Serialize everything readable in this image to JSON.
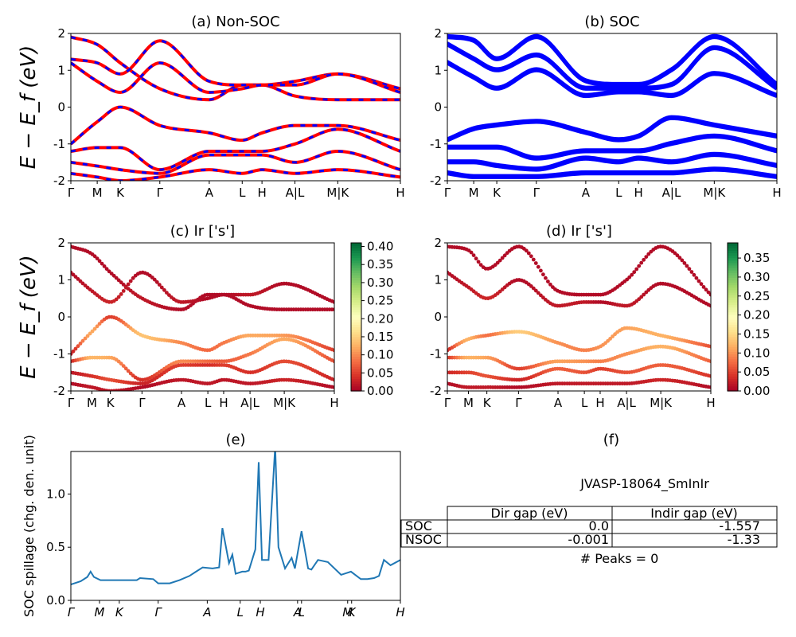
{
  "chart_data": [
    {
      "panel": "a",
      "type": "line",
      "title": "(a) Non-SOC",
      "ylabel": "E − E_f (eV)",
      "ylim": [
        -2,
        2
      ],
      "yticks": [
        -2,
        -1,
        0,
        1,
        2
      ],
      "kpath": [
        "Γ",
        "M",
        "K",
        "Γ",
        "A",
        "L",
        "H",
        "A|L",
        "M|K",
        "H"
      ],
      "series": [
        {
          "color": "#ff0000",
          "x": [
            0,
            0.08,
            0.15,
            0.27,
            0.42,
            0.52,
            0.58,
            0.68,
            0.81,
            1
          ],
          "values": [
            1.9,
            1.7,
            1.2,
            0.5,
            0.2,
            0.6,
            0.6,
            0.3,
            0.2,
            0.2
          ]
        },
        {
          "color": "#ff0000",
          "x": [
            0,
            0.08,
            0.15,
            0.27,
            0.42,
            0.52,
            0.58,
            0.68,
            0.81,
            1
          ],
          "values": [
            1.3,
            1.2,
            0.9,
            1.8,
            0.7,
            0.6,
            0.6,
            0.7,
            0.9,
            0.5
          ]
        },
        {
          "color": "#ff0000",
          "x": [
            0,
            0.08,
            0.15,
            0.27,
            0.42,
            0.52,
            0.58,
            0.68,
            0.81,
            1
          ],
          "values": [
            1.2,
            0.7,
            0.4,
            1.2,
            0.4,
            0.5,
            0.6,
            0.6,
            0.9,
            0.4
          ]
        },
        {
          "color": "#ff0000",
          "x": [
            0,
            0.08,
            0.15,
            0.27,
            0.42,
            0.52,
            0.58,
            0.68,
            0.81,
            1
          ],
          "values": [
            -1.0,
            -0.4,
            0,
            -0.5,
            -0.7,
            -0.9,
            -0.7,
            -0.5,
            -0.5,
            -0.9
          ]
        },
        {
          "color": "#ff0000",
          "x": [
            0,
            0.08,
            0.15,
            0.27,
            0.42,
            0.52,
            0.58,
            0.68,
            0.81,
            1
          ],
          "values": [
            -1.2,
            -1.1,
            -1.1,
            -1.7,
            -1.2,
            -1.2,
            -1.2,
            -1.0,
            -0.6,
            -1.2
          ]
        },
        {
          "color": "#ff0000",
          "x": [
            0,
            0.08,
            0.15,
            0.27,
            0.42,
            0.52,
            0.58,
            0.68,
            0.81,
            1
          ],
          "values": [
            -1.5,
            -1.6,
            -1.7,
            -1.8,
            -1.3,
            -1.3,
            -1.3,
            -1.5,
            -1.2,
            -1.7
          ]
        },
        {
          "color": "#ff0000",
          "x": [
            0,
            0.08,
            0.15,
            0.27,
            0.42,
            0.52,
            0.58,
            0.68,
            0.81,
            1
          ],
          "values": [
            -1.8,
            -1.9,
            -2.0,
            -1.9,
            -1.7,
            -1.8,
            -1.7,
            -1.8,
            -1.7,
            -1.9
          ]
        }
      ]
    },
    {
      "panel": "b",
      "type": "line",
      "title": "(b) SOC",
      "ylim": [
        -2,
        2
      ],
      "yticks": [
        -2,
        -1,
        0,
        1,
        2
      ],
      "kpath": [
        "Γ",
        "M",
        "K",
        "Γ",
        "A",
        "L",
        "H",
        "A|L",
        "M|K",
        "H"
      ],
      "series": [
        {
          "color": "#0000ff",
          "x": [
            0,
            0.08,
            0.15,
            0.27,
            0.42,
            0.52,
            0.58,
            0.68,
            0.81,
            1
          ],
          "values": [
            1.9,
            1.8,
            1.3,
            1.9,
            0.7,
            0.6,
            0.6,
            1.0,
            1.9,
            0.6
          ]
        },
        {
          "color": "#0000ff",
          "x": [
            0,
            0.08,
            0.15,
            0.27,
            0.42,
            0.52,
            0.58,
            0.68,
            0.81,
            1
          ],
          "values": [
            1.7,
            1.3,
            1.0,
            1.4,
            0.5,
            0.5,
            0.5,
            0.6,
            1.6,
            0.5
          ]
        },
        {
          "color": "#0000ff",
          "x": [
            0,
            0.08,
            0.15,
            0.27,
            0.42,
            0.52,
            0.58,
            0.68,
            0.81,
            1
          ],
          "values": [
            1.2,
            0.8,
            0.5,
            1.0,
            0.3,
            0.4,
            0.4,
            0.3,
            0.9,
            0.3
          ]
        },
        {
          "color": "#0000ff",
          "x": [
            0,
            0.08,
            0.15,
            0.27,
            0.42,
            0.52,
            0.58,
            0.68,
            0.81,
            1
          ],
          "values": [
            -0.9,
            -0.6,
            -0.5,
            -0.4,
            -0.7,
            -0.9,
            -0.8,
            -0.3,
            -0.5,
            -0.8
          ]
        },
        {
          "color": "#0000ff",
          "x": [
            0,
            0.08,
            0.15,
            0.27,
            0.42,
            0.52,
            0.58,
            0.68,
            0.81,
            1
          ],
          "values": [
            -1.1,
            -1.1,
            -1.1,
            -1.4,
            -1.2,
            -1.2,
            -1.2,
            -1.0,
            -0.8,
            -1.2
          ]
        },
        {
          "color": "#0000ff",
          "x": [
            0,
            0.08,
            0.15,
            0.27,
            0.42,
            0.52,
            0.58,
            0.68,
            0.81,
            1
          ],
          "values": [
            -1.5,
            -1.5,
            -1.6,
            -1.7,
            -1.4,
            -1.5,
            -1.4,
            -1.5,
            -1.3,
            -1.6
          ]
        },
        {
          "color": "#0000ff",
          "x": [
            0,
            0.08,
            0.15,
            0.27,
            0.42,
            0.52,
            0.58,
            0.68,
            0.81,
            1
          ],
          "values": [
            -1.8,
            -1.9,
            -1.9,
            -1.9,
            -1.8,
            -1.8,
            -1.8,
            -1.8,
            -1.7,
            -1.9
          ]
        }
      ]
    },
    {
      "panel": "c",
      "type": "scatter",
      "title": "(c)  Ir ['s']",
      "ylabel": "E − E_f (eV)",
      "ylim": [
        -2,
        2
      ],
      "yticks": [
        -2,
        -1,
        0,
        1,
        2
      ],
      "kpath": [
        "Γ",
        "M",
        "K",
        "Γ",
        "A",
        "L",
        "H",
        "A|L",
        "M|K",
        "H"
      ],
      "colorbar": {
        "min": 0.0,
        "max": 0.41,
        "ticks": [
          "0.00",
          "0.05",
          "0.10",
          "0.15",
          "0.20",
          "0.25",
          "0.30",
          "0.35",
          "0.40"
        ]
      },
      "series": [
        {
          "x": [
            0,
            0.08,
            0.15,
            0.27,
            0.42,
            0.52,
            0.58,
            0.68,
            0.81,
            1
          ],
          "values": [
            1.9,
            1.7,
            1.2,
            0.5,
            0.2,
            0.6,
            0.6,
            0.3,
            0.2,
            0.2
          ],
          "weights": [
            0.01,
            0.01,
            0.01,
            0.02,
            0.01,
            0.01,
            0.01,
            0.01,
            0.01,
            0.01
          ]
        },
        {
          "x": [
            0,
            0.08,
            0.15,
            0.27,
            0.42,
            0.52,
            0.58,
            0.68,
            0.81,
            1
          ],
          "values": [
            1.2,
            0.7,
            0.4,
            1.2,
            0.4,
            0.5,
            0.6,
            0.6,
            0.9,
            0.4
          ],
          "weights": [
            0.01,
            0.02,
            0.03,
            0.01,
            0.02,
            0.01,
            0.01,
            0.02,
            0.01,
            0.01
          ]
        },
        {
          "x": [
            0,
            0.08,
            0.15,
            0.27,
            0.42,
            0.52,
            0.58,
            0.68,
            0.81,
            1
          ],
          "values": [
            -1.0,
            -0.4,
            0,
            -0.5,
            -0.7,
            -0.9,
            -0.7,
            -0.5,
            -0.5,
            -0.9
          ],
          "weights": [
            0.02,
            0.12,
            0.05,
            0.14,
            0.1,
            0.08,
            0.09,
            0.12,
            0.11,
            0.05
          ]
        },
        {
          "x": [
            0,
            0.08,
            0.15,
            0.27,
            0.42,
            0.52,
            0.58,
            0.68,
            0.81,
            1
          ],
          "values": [
            -1.2,
            -1.1,
            -1.1,
            -1.7,
            -1.2,
            -1.2,
            -1.2,
            -1.0,
            -0.6,
            -1.2
          ],
          "weights": [
            0.03,
            0.13,
            0.12,
            0.04,
            0.1,
            0.08,
            0.07,
            0.09,
            0.12,
            0.06
          ]
        },
        {
          "x": [
            0,
            0.08,
            0.15,
            0.27,
            0.42,
            0.52,
            0.58,
            0.68,
            0.81,
            1
          ],
          "values": [
            -1.5,
            -1.6,
            -1.7,
            -1.8,
            -1.3,
            -1.3,
            -1.3,
            -1.5,
            -1.2,
            -1.7
          ],
          "weights": [
            0.02,
            0.04,
            0.06,
            0.03,
            0.05,
            0.04,
            0.05,
            0.04,
            0.06,
            0.03
          ]
        },
        {
          "x": [
            0,
            0.08,
            0.15,
            0.27,
            0.42,
            0.52,
            0.58,
            0.68,
            0.81,
            1
          ],
          "values": [
            -1.8,
            -1.9,
            -2.0,
            -1.9,
            -1.7,
            -1.8,
            -1.7,
            -1.8,
            -1.7,
            -1.9
          ],
          "weights": [
            0.01,
            0.02,
            0.02,
            0.01,
            0.02,
            0.02,
            0.02,
            0.02,
            0.03,
            0.01
          ]
        }
      ]
    },
    {
      "panel": "d",
      "type": "scatter",
      "title": "(d) Ir ['s']",
      "ylim": [
        -2,
        2
      ],
      "yticks": [
        -2,
        -1,
        0,
        1,
        2
      ],
      "kpath": [
        "Γ",
        "M",
        "K",
        "Γ",
        "A",
        "L",
        "H",
        "A|L",
        "M|K",
        "H"
      ],
      "colorbar": {
        "min": 0.0,
        "max": 0.39,
        "ticks": [
          "0.00",
          "0.05",
          "0.10",
          "0.15",
          "0.20",
          "0.25",
          "0.30",
          "0.35"
        ]
      },
      "series": [
        {
          "x": [
            0,
            0.08,
            0.15,
            0.27,
            0.42,
            0.52,
            0.58,
            0.68,
            0.81,
            1
          ],
          "values": [
            1.9,
            1.8,
            1.3,
            1.9,
            0.7,
            0.6,
            0.6,
            1.0,
            1.9,
            0.6
          ],
          "weights": [
            0.01,
            0.01,
            0.01,
            0.01,
            0.01,
            0.01,
            0.01,
            0.01,
            0.01,
            0.01
          ]
        },
        {
          "x": [
            0,
            0.08,
            0.15,
            0.27,
            0.42,
            0.52,
            0.58,
            0.68,
            0.81,
            1
          ],
          "values": [
            1.2,
            0.8,
            0.5,
            1.0,
            0.3,
            0.4,
            0.4,
            0.3,
            0.9,
            0.3
          ],
          "weights": [
            0.01,
            0.02,
            0.03,
            0.01,
            0.02,
            0.02,
            0.01,
            0.02,
            0.01,
            0.01
          ]
        },
        {
          "x": [
            0,
            0.08,
            0.15,
            0.27,
            0.42,
            0.52,
            0.58,
            0.68,
            0.81,
            1
          ],
          "values": [
            -0.9,
            -0.6,
            -0.5,
            -0.4,
            -0.7,
            -0.9,
            -0.8,
            -0.3,
            -0.5,
            -0.8
          ],
          "weights": [
            0.03,
            0.12,
            0.08,
            0.14,
            0.1,
            0.09,
            0.1,
            0.11,
            0.12,
            0.06
          ]
        },
        {
          "x": [
            0,
            0.08,
            0.15,
            0.27,
            0.42,
            0.52,
            0.58,
            0.68,
            0.81,
            1
          ],
          "values": [
            -1.1,
            -1.1,
            -1.1,
            -1.4,
            -1.2,
            -1.2,
            -1.2,
            -1.0,
            -0.8,
            -1.2
          ],
          "weights": [
            0.04,
            0.12,
            0.11,
            0.05,
            0.11,
            0.1,
            0.09,
            0.1,
            0.12,
            0.07
          ]
        },
        {
          "x": [
            0,
            0.08,
            0.15,
            0.27,
            0.42,
            0.52,
            0.58,
            0.68,
            0.81,
            1
          ],
          "values": [
            -1.5,
            -1.5,
            -1.6,
            -1.7,
            -1.4,
            -1.5,
            -1.4,
            -1.5,
            -1.3,
            -1.6
          ],
          "weights": [
            0.03,
            0.05,
            0.06,
            0.03,
            0.07,
            0.06,
            0.05,
            0.06,
            0.07,
            0.04
          ]
        },
        {
          "x": [
            0,
            0.08,
            0.15,
            0.27,
            0.42,
            0.52,
            0.58,
            0.68,
            0.81,
            1
          ],
          "values": [
            -1.8,
            -1.9,
            -1.9,
            -1.9,
            -1.8,
            -1.8,
            -1.8,
            -1.8,
            -1.7,
            -1.9
          ],
          "weights": [
            0.01,
            0.02,
            0.02,
            0.01,
            0.02,
            0.02,
            0.02,
            0.02,
            0.03,
            0.01
          ]
        }
      ]
    },
    {
      "panel": "e",
      "type": "line",
      "title": "(e)",
      "ylabel": "SOC spillage (chg. den. unit)",
      "ylim": [
        0,
        1.4
      ],
      "yticks": [
        "0.0",
        "0.5",
        "1.0"
      ],
      "ytick_values": [
        0,
        0.5,
        1.0
      ],
      "kpath": [
        "Γ",
        "M",
        "K",
        "Γ",
        "A",
        "L",
        "H",
        "A",
        "L",
        "M",
        "K",
        "H"
      ],
      "kpath_pos": [
        0,
        0.087,
        0.147,
        0.265,
        0.414,
        0.514,
        0.575,
        0.688,
        0.7,
        0.84,
        0.852,
        1
      ],
      "series": [
        {
          "color": "#1f77b4",
          "x": [
            0,
            0.03,
            0.05,
            0.06,
            0.07,
            0.09,
            0.147,
            0.2,
            0.21,
            0.25,
            0.265,
            0.3,
            0.33,
            0.36,
            0.38,
            0.4,
            0.43,
            0.45,
            0.46,
            0.48,
            0.49,
            0.5,
            0.52,
            0.53,
            0.54,
            0.56,
            0.57,
            0.58,
            0.6,
            0.62,
            0.63,
            0.65,
            0.67,
            0.68,
            0.7,
            0.72,
            0.73,
            0.75,
            0.78,
            0.82,
            0.85,
            0.88,
            0.9,
            0.92,
            0.935,
            0.95,
            0.97,
            1
          ],
          "values": [
            0.15,
            0.18,
            0.22,
            0.27,
            0.22,
            0.19,
            0.19,
            0.19,
            0.21,
            0.2,
            0.16,
            0.16,
            0.19,
            0.23,
            0.27,
            0.31,
            0.3,
            0.31,
            0.68,
            0.35,
            0.43,
            0.25,
            0.27,
            0.27,
            0.28,
            0.48,
            1.3,
            0.38,
            0.38,
            1.45,
            0.5,
            0.3,
            0.4,
            0.3,
            0.65,
            0.3,
            0.29,
            0.38,
            0.36,
            0.24,
            0.27,
            0.2,
            0.2,
            0.21,
            0.23,
            0.38,
            0.33,
            0.38
          ]
        }
      ]
    }
  ],
  "info_panel": {
    "title": "(f)",
    "material": "JVASP-18064_SmInIr",
    "table": {
      "headers": [
        "",
        "Dir gap (eV)",
        "Indir gap (eV)"
      ],
      "rows": [
        [
          "SOC",
          "0.0",
          "-1.557"
        ],
        [
          "NSOC",
          "-0.001",
          "-1.33"
        ]
      ]
    },
    "peaks": "# Peaks = 0"
  }
}
